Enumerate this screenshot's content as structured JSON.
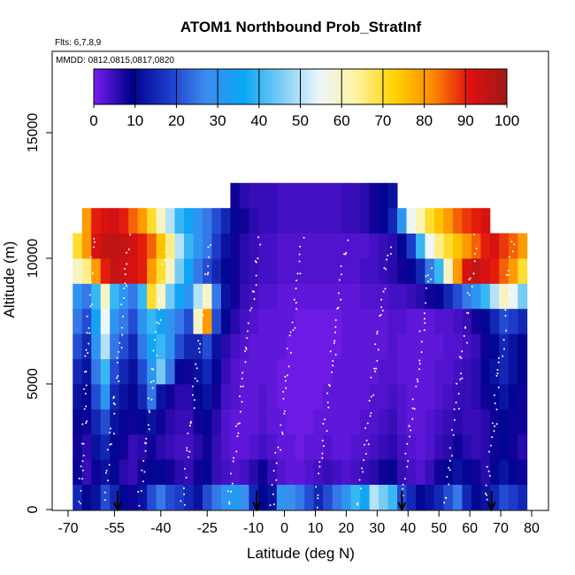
{
  "chart_data": {
    "type": "heatmap",
    "title": "ATOM1 Northbound Prob_StratInf",
    "subtitle_lines": [
      "Flts: 6,7,8,9",
      "MMDD: 0812,0815,0817,0820"
    ],
    "xlabel": "Latitude (deg N)",
    "ylabel": "Altitude (m)",
    "xlim": [
      -70,
      80
    ],
    "ylim": [
      0,
      17000
    ],
    "x_ticks": [
      -70,
      -55,
      -40,
      -25,
      -10,
      0,
      10,
      20,
      30,
      40,
      50,
      60,
      70,
      80
    ],
    "x_tick_labels": [
      "-70",
      "-55",
      "-40",
      "-25",
      "-10",
      "0",
      "10",
      "20",
      "30",
      "40",
      "50",
      "60",
      "70",
      "80"
    ],
    "y_ticks": [
      0,
      5000,
      10000,
      15000
    ],
    "y_tick_labels": [
      "0",
      "5000",
      "10000",
      "15000"
    ],
    "colorbar": {
      "range": [
        0,
        100
      ],
      "ticks": [
        0,
        10,
        20,
        30,
        40,
        50,
        60,
        70,
        80,
        90,
        100
      ],
      "tick_labels": [
        "0",
        "10",
        "20",
        "30",
        "40",
        "50",
        "60",
        "70",
        "80",
        "90",
        "100"
      ],
      "colors": [
        "#7a1df0",
        "#00008b",
        "#1e3ccc",
        "#3d8cf0",
        "#0aa8f5",
        "#7ccdf5",
        "#ecf6fb",
        "#fff3a0",
        "#ffd400",
        "#ff8c00",
        "#e01010",
        "#a01818"
      ]
    },
    "latitude_bins": [
      -67,
      -64,
      -61,
      -58,
      -55,
      -52,
      -49,
      -46,
      -43,
      -40,
      -37,
      -34,
      -31,
      -28,
      -25,
      -22,
      -19,
      -16,
      -13,
      -10,
      -7,
      -4,
      -1,
      2,
      5,
      8,
      11,
      14,
      17,
      20,
      23,
      26,
      29,
      32,
      35,
      38,
      41,
      44,
      47,
      50,
      53,
      56,
      59,
      62,
      65,
      68,
      71,
      74,
      77
    ],
    "altitude_bands": [
      {
        "alt_range": [
          0,
          1000
        ],
        "values": [
          15,
          10,
          12,
          20,
          15,
          10,
          8,
          12,
          20,
          25,
          20,
          18,
          15,
          12,
          20,
          25,
          30,
          32,
          28,
          15,
          10,
          12,
          30,
          28,
          25,
          20,
          15,
          20,
          25,
          30,
          40,
          35,
          50,
          45,
          40,
          20,
          15,
          10,
          12,
          15,
          20,
          25,
          15,
          10,
          12,
          15,
          20,
          18,
          15
        ]
      },
      {
        "alt_range": [
          1000,
          2000
        ],
        "values": [
          10,
          5,
          8,
          12,
          10,
          6,
          5,
          8,
          10,
          10,
          8,
          6,
          5,
          8,
          10,
          5,
          4,
          3,
          4,
          6,
          8,
          5,
          3,
          2,
          2,
          3,
          4,
          5,
          4,
          3,
          4,
          5,
          6,
          8,
          10,
          5,
          4,
          3,
          5,
          8,
          10,
          12,
          10,
          8,
          6,
          10,
          12,
          10,
          8
        ]
      },
      {
        "alt_range": [
          2000,
          3000
        ],
        "values": [
          8,
          6,
          12,
          15,
          10,
          8,
          5,
          6,
          8,
          6,
          5,
          4,
          4,
          6,
          8,
          5,
          3,
          2,
          2,
          3,
          4,
          3,
          2,
          2,
          1,
          2,
          2,
          3,
          2,
          2,
          3,
          3,
          4,
          5,
          6,
          4,
          3,
          2,
          3,
          5,
          6,
          8,
          6,
          5,
          6,
          8,
          10,
          8,
          6
        ]
      },
      {
        "alt_range": [
          3000,
          4000
        ],
        "values": [
          10,
          8,
          15,
          20,
          12,
          10,
          8,
          10,
          12,
          8,
          6,
          5,
          5,
          8,
          10,
          6,
          3,
          2,
          2,
          2,
          3,
          2,
          2,
          1,
          1,
          1,
          2,
          2,
          2,
          2,
          2,
          3,
          3,
          4,
          5,
          3,
          2,
          2,
          3,
          4,
          5,
          6,
          5,
          5,
          6,
          8,
          10,
          8,
          8
        ]
      },
      {
        "alt_range": [
          4000,
          5000
        ],
        "values": [
          12,
          10,
          20,
          30,
          15,
          12,
          10,
          15,
          25,
          12,
          8,
          6,
          6,
          10,
          12,
          8,
          4,
          3,
          2,
          2,
          3,
          2,
          1,
          1,
          1,
          1,
          1,
          2,
          2,
          2,
          2,
          2,
          3,
          3,
          4,
          3,
          2,
          2,
          2,
          3,
          4,
          5,
          5,
          6,
          8,
          10,
          12,
          10,
          8
        ]
      },
      {
        "alt_range": [
          5000,
          6000
        ],
        "values": [
          15,
          12,
          25,
          40,
          20,
          15,
          12,
          20,
          30,
          45,
          25,
          10,
          8,
          12,
          15,
          10,
          5,
          3,
          2,
          2,
          2,
          2,
          1,
          1,
          1,
          1,
          1,
          1,
          2,
          2,
          2,
          2,
          2,
          3,
          3,
          2,
          2,
          2,
          2,
          3,
          3,
          4,
          5,
          6,
          10,
          12,
          15,
          12,
          10
        ]
      },
      {
        "alt_range": [
          6000,
          7000
        ],
        "values": [
          20,
          15,
          30,
          50,
          25,
          20,
          15,
          25,
          35,
          40,
          30,
          20,
          15,
          15,
          20,
          12,
          6,
          4,
          3,
          2,
          2,
          2,
          2,
          1,
          1,
          1,
          1,
          1,
          1,
          2,
          2,
          2,
          2,
          2,
          3,
          2,
          2,
          2,
          2,
          2,
          3,
          3,
          4,
          5,
          8,
          10,
          15,
          12,
          10
        ]
      },
      {
        "alt_range": [
          7000,
          8000
        ],
        "values": [
          25,
          20,
          35,
          55,
          30,
          25,
          20,
          30,
          40,
          35,
          30,
          25,
          20,
          60,
          80,
          20,
          10,
          6,
          4,
          3,
          2,
          2,
          2,
          2,
          1,
          1,
          1,
          1,
          1,
          2,
          2,
          2,
          2,
          2,
          3,
          3,
          2,
          2,
          2,
          3,
          3,
          4,
          5,
          8,
          10,
          15,
          20,
          18,
          15
        ]
      },
      {
        "alt_range": [
          8000,
          9000
        ],
        "values": [
          30,
          25,
          40,
          60,
          40,
          30,
          25,
          40,
          70,
          60,
          45,
          35,
          30,
          50,
          60,
          25,
          12,
          8,
          5,
          4,
          3,
          3,
          2,
          2,
          2,
          2,
          2,
          2,
          2,
          2,
          2,
          3,
          3,
          3,
          4,
          4,
          5,
          6,
          8,
          10,
          15,
          20,
          25,
          30,
          40,
          50,
          60,
          55,
          45
        ]
      },
      {
        "alt_range": [
          9000,
          10000
        ],
        "values": [
          60,
          65,
          80,
          90,
          95,
          93,
          92,
          90,
          80,
          70,
          60,
          45,
          35,
          25,
          20,
          15,
          10,
          8,
          6,
          5,
          4,
          4,
          3,
          3,
          3,
          3,
          3,
          3,
          3,
          3,
          3,
          4,
          4,
          5,
          6,
          8,
          10,
          15,
          25,
          40,
          60,
          80,
          92,
          95,
          92,
          90,
          85,
          80,
          70
        ]
      },
      {
        "alt_range": [
          10000,
          11000
        ],
        "values": [
          70,
          80,
          92,
          95,
          96,
          95,
          93,
          90,
          85,
          75,
          65,
          50,
          40,
          30,
          25,
          18,
          12,
          8,
          6,
          5,
          4,
          4,
          3,
          3,
          3,
          3,
          3,
          3,
          3,
          3,
          3,
          3,
          4,
          5,
          6,
          10,
          18,
          40,
          55,
          65,
          70,
          75,
          80,
          85,
          90,
          92,
          88,
          85,
          80
        ]
      },
      {
        "alt_range": [
          11000,
          12000
        ],
        "values": [
          -1,
          80,
          90,
          92,
          93,
          90,
          85,
          80,
          70,
          60,
          50,
          40,
          35,
          30,
          25,
          20,
          15,
          10,
          8,
          6,
          5,
          5,
          4,
          4,
          4,
          4,
          4,
          4,
          4,
          5,
          5,
          6,
          8,
          10,
          15,
          30,
          55,
          62,
          70,
          75,
          80,
          85,
          88,
          90,
          92,
          -1,
          -1,
          -1,
          -1
        ]
      },
      {
        "alt_range": [
          12000,
          13000
        ],
        "values": [
          -1,
          -1,
          -1,
          -1,
          -1,
          -1,
          -1,
          -1,
          -1,
          -1,
          -1,
          -1,
          -1,
          -1,
          -1,
          -1,
          -1,
          8,
          6,
          5,
          5,
          5,
          4,
          4,
          4,
          4,
          4,
          4,
          4,
          5,
          5,
          6,
          8,
          10,
          12,
          -1,
          -1,
          -1,
          -1,
          -1,
          -1,
          -1,
          -1,
          -1,
          -1,
          -1,
          -1,
          -1,
          -1
        ]
      }
    ],
    "flight_tracks_present": true,
    "annotations": {
      "arrows_at_latitude": [
        -54,
        -9,
        38,
        67
      ]
    },
    "grid": false,
    "legend_placement": "top"
  }
}
